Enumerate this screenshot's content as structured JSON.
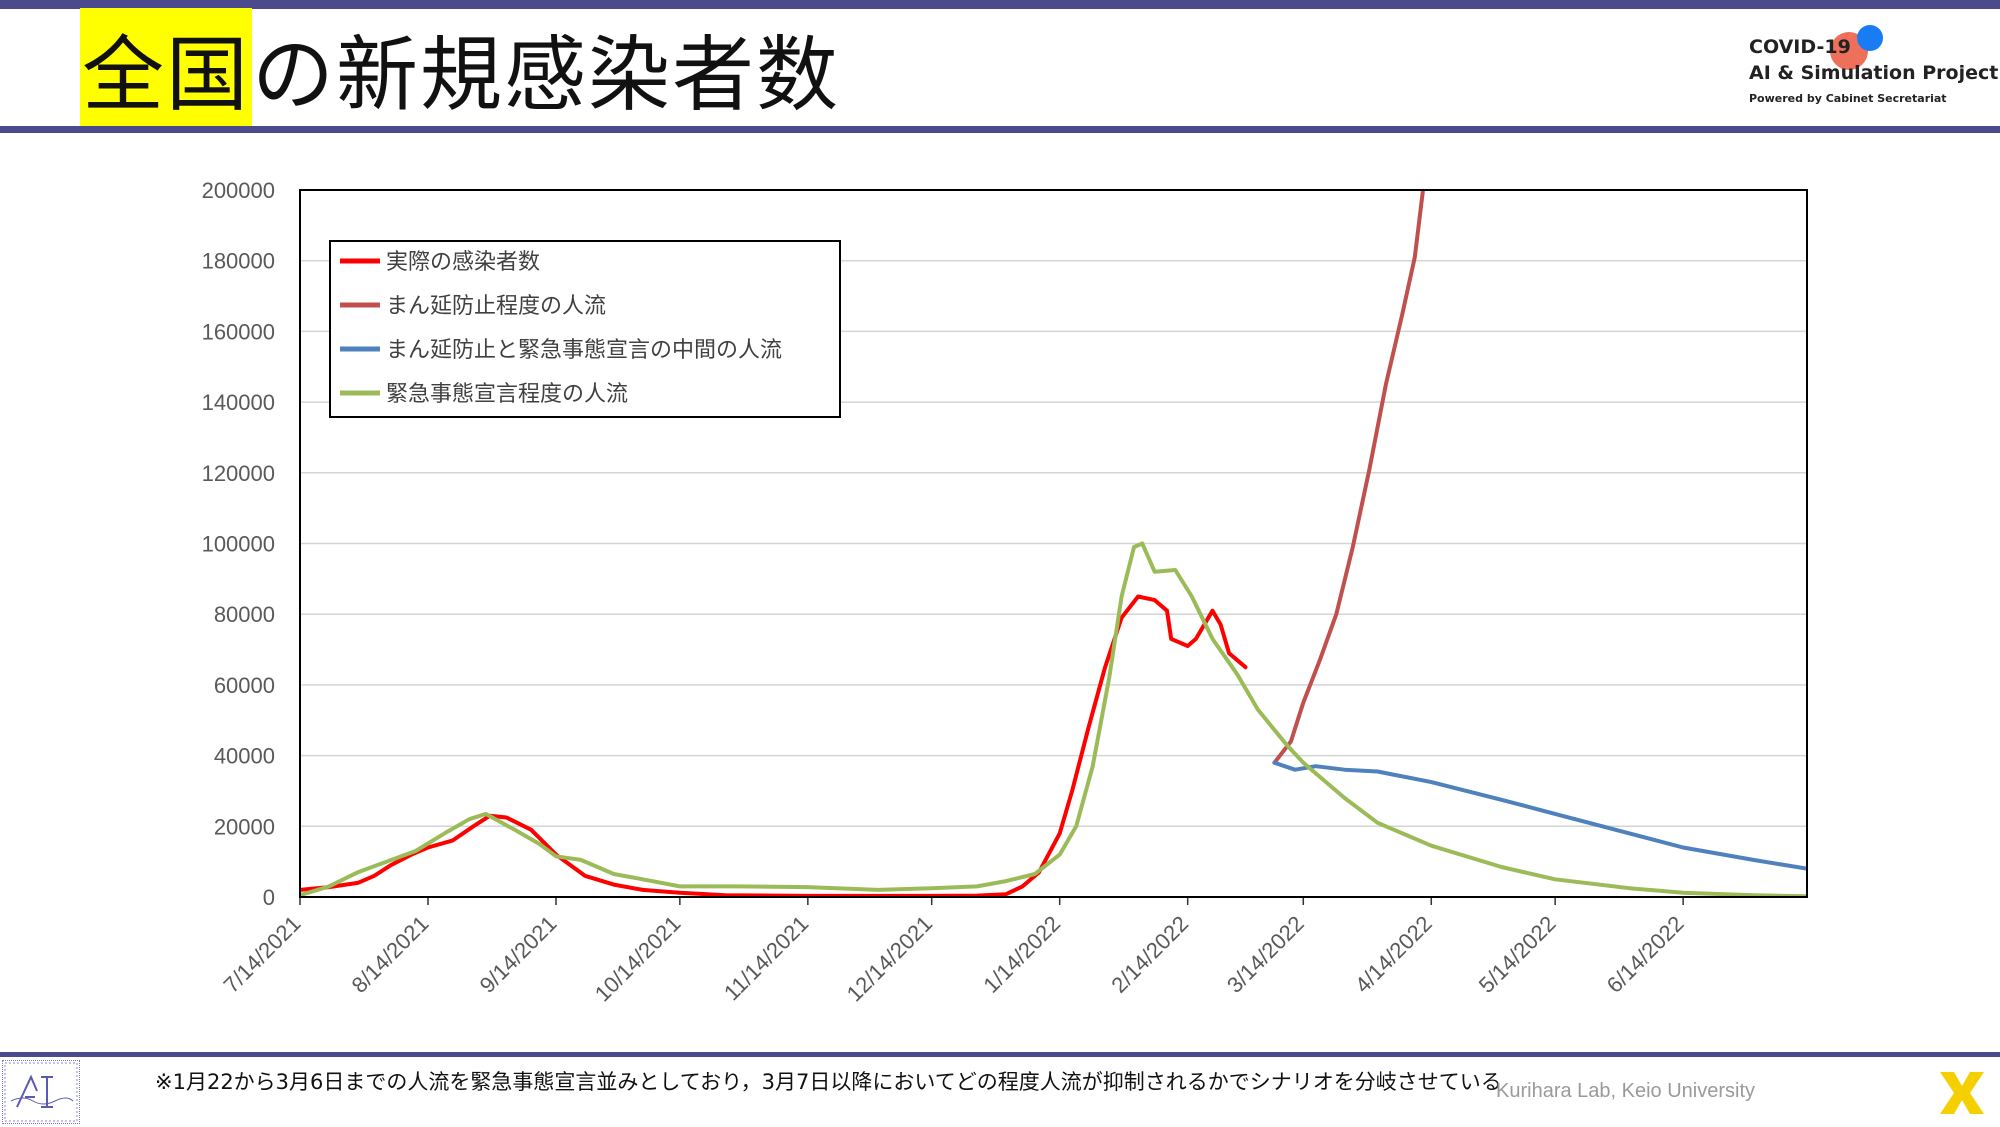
{
  "header": {
    "title_highlight": "全国",
    "title_rest": "の新規感染者数",
    "logo": {
      "line1": "COVID-19",
      "line2": "AI & Simulation Project",
      "line3": "Powered by Cabinet Secretariat"
    }
  },
  "footer": {
    "note": "※1月22から3月6日までの人流を緊急事態宣言並みとしており，3月7日以降においてどの程度人流が抑制されるかでシナリオを分岐させている",
    "credit": "Kurihara Lab, Keio University"
  },
  "colors": {
    "accent_bar": "#4b4a8c",
    "highlight": "#ffff00"
  },
  "chart_data": {
    "type": "line",
    "title": "",
    "xlabel": "",
    "ylabel": "",
    "x_range": [
      "2021-07-14",
      "2022-07-14"
    ],
    "ylim": [
      0,
      200000
    ],
    "y_ticks": [
      0,
      20000,
      40000,
      60000,
      80000,
      100000,
      120000,
      140000,
      160000,
      180000,
      200000
    ],
    "x_ticks": [
      "7/14/2021",
      "8/14/2021",
      "9/14/2021",
      "10/14/2021",
      "11/14/2021",
      "12/14/2021",
      "1/14/2022",
      "2/14/2022",
      "3/14/2022",
      "4/14/2022",
      "5/14/2022",
      "6/14/2022"
    ],
    "grid": "horizontal",
    "legend_position": "top-left",
    "series": [
      {
        "name": "実際の感染者数",
        "color": "#ff0000",
        "points": [
          [
            "2021-07-14",
            2000
          ],
          [
            "2021-07-21",
            2800
          ],
          [
            "2021-07-28",
            4000
          ],
          [
            "2021-08-01",
            6000
          ],
          [
            "2021-08-05",
            9000
          ],
          [
            "2021-08-10",
            12000
          ],
          [
            "2021-08-14",
            14000
          ],
          [
            "2021-08-20",
            16000
          ],
          [
            "2021-08-25",
            20000
          ],
          [
            "2021-08-29",
            23000
          ],
          [
            "2021-09-02",
            22500
          ],
          [
            "2021-09-08",
            19000
          ],
          [
            "2021-09-14",
            12000
          ],
          [
            "2021-09-21",
            6000
          ],
          [
            "2021-09-28",
            3500
          ],
          [
            "2021-10-05",
            2000
          ],
          [
            "2021-10-14",
            1200
          ],
          [
            "2021-10-25",
            500
          ],
          [
            "2021-11-14",
            300
          ],
          [
            "2021-12-14",
            300
          ],
          [
            "2021-12-25",
            400
          ],
          [
            "2022-01-01",
            800
          ],
          [
            "2022-01-05",
            3000
          ],
          [
            "2022-01-09",
            7000
          ],
          [
            "2022-01-14",
            18000
          ],
          [
            "2022-01-17",
            30000
          ],
          [
            "2022-01-21",
            48000
          ],
          [
            "2022-01-25",
            65000
          ],
          [
            "2022-01-29",
            79000
          ],
          [
            "2022-02-02",
            85000
          ],
          [
            "2022-02-06",
            84000
          ],
          [
            "2022-02-09",
            81000
          ],
          [
            "2022-02-10",
            73000
          ],
          [
            "2022-02-14",
            71000
          ],
          [
            "2022-02-16",
            73000
          ],
          [
            "2022-02-18",
            77000
          ],
          [
            "2022-02-20",
            81000
          ],
          [
            "2022-02-22",
            77000
          ],
          [
            "2022-02-24",
            69000
          ],
          [
            "2022-02-28",
            65000
          ]
        ]
      },
      {
        "name": "まん延防止程度の人流",
        "color": "#c0504d",
        "points": [
          [
            "2022-03-07",
            38000
          ],
          [
            "2022-03-11",
            44000
          ],
          [
            "2022-03-14",
            55000
          ],
          [
            "2022-03-18",
            67000
          ],
          [
            "2022-03-22",
            80000
          ],
          [
            "2022-03-26",
            99000
          ],
          [
            "2022-03-30",
            121000
          ],
          [
            "2022-04-03",
            145000
          ],
          [
            "2022-04-07",
            165000
          ],
          [
            "2022-04-10",
            181000
          ],
          [
            "2022-04-12",
            200000
          ]
        ]
      },
      {
        "name": "まん延防止と緊急事態宣言の中間の人流",
        "color": "#4f81bd",
        "points": [
          [
            "2022-03-07",
            38000
          ],
          [
            "2022-03-12",
            36000
          ],
          [
            "2022-03-17",
            37000
          ],
          [
            "2022-03-24",
            36000
          ],
          [
            "2022-04-01",
            35500
          ],
          [
            "2022-04-14",
            32500
          ],
          [
            "2022-05-01",
            27500
          ],
          [
            "2022-05-14",
            23500
          ],
          [
            "2022-06-01",
            18000
          ],
          [
            "2022-06-14",
            14000
          ],
          [
            "2022-07-01",
            10500
          ],
          [
            "2022-07-14",
            8000
          ]
        ]
      },
      {
        "name": "緊急事態宣言程度の人流",
        "color": "#9bbb59",
        "points": [
          [
            "2021-07-14",
            500
          ],
          [
            "2021-07-21",
            3000
          ],
          [
            "2021-07-28",
            7000
          ],
          [
            "2021-08-04",
            10000
          ],
          [
            "2021-08-11",
            13000
          ],
          [
            "2021-08-18",
            18000
          ],
          [
            "2021-08-24",
            22000
          ],
          [
            "2021-08-28",
            23500
          ],
          [
            "2021-09-04",
            19000
          ],
          [
            "2021-09-10",
            15000
          ],
          [
            "2021-09-14",
            11500
          ],
          [
            "2021-09-20",
            10500
          ],
          [
            "2021-09-28",
            6500
          ],
          [
            "2021-10-05",
            5000
          ],
          [
            "2021-10-14",
            3000
          ],
          [
            "2021-10-28",
            3000
          ],
          [
            "2021-11-14",
            2800
          ],
          [
            "2021-12-01",
            2000
          ],
          [
            "2021-12-14",
            2500
          ],
          [
            "2021-12-25",
            3000
          ],
          [
            "2022-01-01",
            4500
          ],
          [
            "2022-01-08",
            6500
          ],
          [
            "2022-01-14",
            12000
          ],
          [
            "2022-01-18",
            20000
          ],
          [
            "2022-01-22",
            37000
          ],
          [
            "2022-01-26",
            62000
          ],
          [
            "2022-01-29",
            85000
          ],
          [
            "2022-02-01",
            99000
          ],
          [
            "2022-02-03",
            100000
          ],
          [
            "2022-02-06",
            92000
          ],
          [
            "2022-02-11",
            92500
          ],
          [
            "2022-02-15",
            85000
          ],
          [
            "2022-02-20",
            73000
          ],
          [
            "2022-02-26",
            63000
          ],
          [
            "2022-03-03",
            53000
          ],
          [
            "2022-03-10",
            43000
          ],
          [
            "2022-03-14",
            38000
          ],
          [
            "2022-03-24",
            28000
          ],
          [
            "2022-04-01",
            21000
          ],
          [
            "2022-04-14",
            14500
          ],
          [
            "2022-05-01",
            8500
          ],
          [
            "2022-05-14",
            5000
          ],
          [
            "2022-06-01",
            2500
          ],
          [
            "2022-06-14",
            1200
          ],
          [
            "2022-07-01",
            500
          ],
          [
            "2022-07-14",
            200
          ]
        ]
      }
    ]
  }
}
